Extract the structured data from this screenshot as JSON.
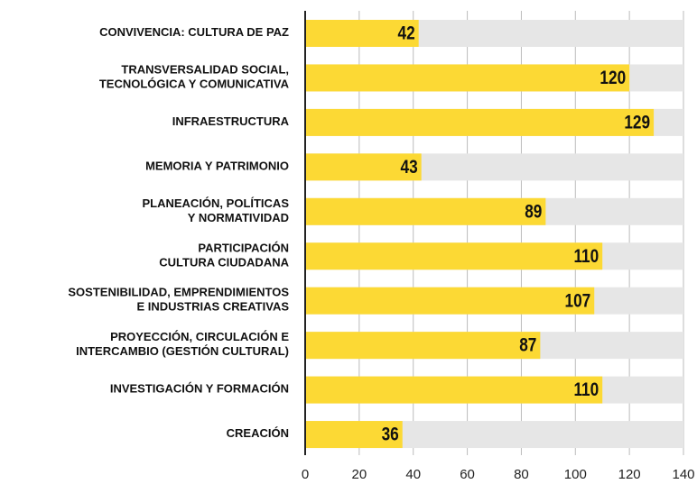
{
  "chart_data": {
    "type": "barh",
    "categories": [
      "CONVIVENCIA: CULTURA DE PAZ",
      "TRANSVERSALIDAD SOCIAL,\nTECNOLÓGICA Y COMUNICATIVA",
      "INFRAESTRUCTURA",
      "MEMORIA Y PATRIMONIO",
      "PLANEACIÓN, POLÍTICAS\nY NORMATIVIDAD",
      "PARTICIPACIÓN\nCULTURA CIUDADANA",
      "SOSTENIBILIDAD, EMPRENDIMIENTOS\nE INDUSTRIAS CREATIVAS",
      "PROYECCIÓN, CIRCULACIÓN E\nINTERCAMBIO (GESTIÓN CULTURAL)",
      "INVESTIGACIÓN Y FORMACIÓN",
      "CREACIÓN"
    ],
    "values": [
      42,
      120,
      129,
      43,
      89,
      110,
      107,
      87,
      110,
      36
    ],
    "color": "#fcd934",
    "track_color": "#e6e6e6",
    "xlim": [
      0,
      140
    ],
    "xticks": [
      0,
      20,
      40,
      60,
      80,
      100,
      120,
      140
    ],
    "grid": true
  }
}
